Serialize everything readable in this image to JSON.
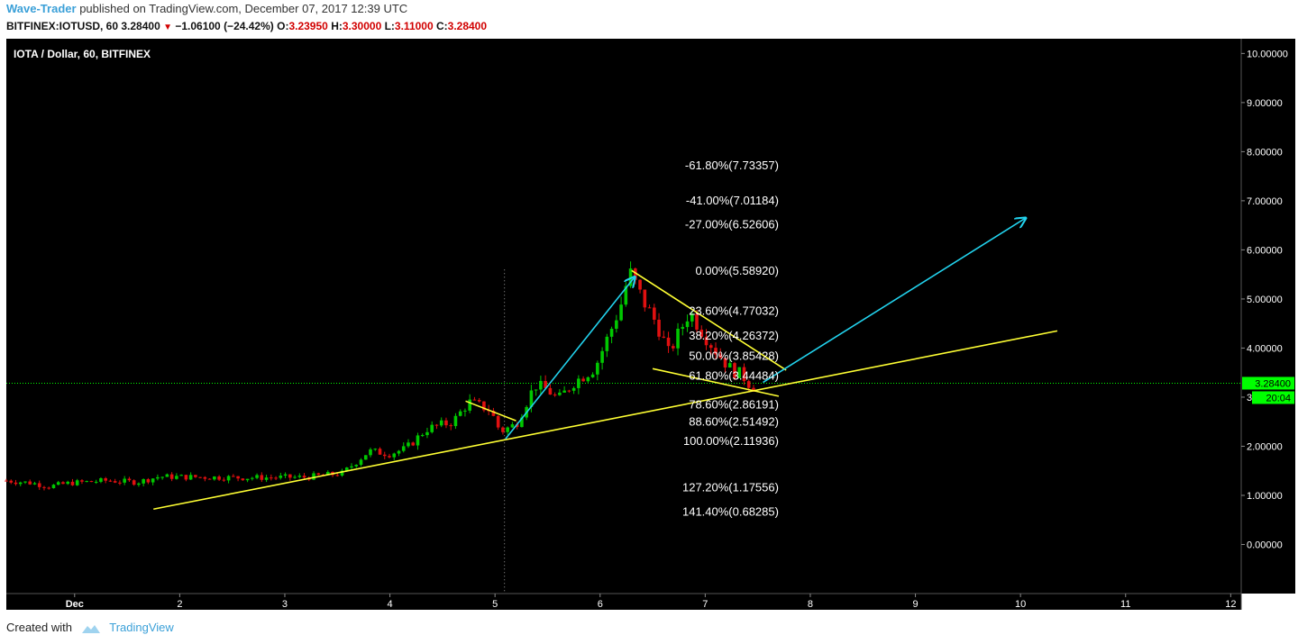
{
  "header": {
    "author": "Wave-Trader",
    "published_text": "published on TradingView.com, December 07, 2017 12:39 UTC",
    "symbol_line": "BITFINEX:IOTUSD, 60",
    "last": "3.28400",
    "change": "−1.06100 (−24.42%)",
    "o_label": "O:",
    "o_value": "3.23950",
    "h_label": "H:",
    "h_value": "3.30000",
    "l_label": "L:",
    "l_value": "3.11000",
    "c_label": "C:",
    "c_value": "3.28400"
  },
  "footer": {
    "created_with": "Created with",
    "brand": "TradingView"
  },
  "colors": {
    "background": "#000000",
    "up": "#00c800",
    "down": "#e01010",
    "trendline": "#ffff33",
    "projection": "#22d3ee",
    "price_tag": "#00ff00"
  },
  "chart_data": {
    "type": "candlestick",
    "title": "IOTA / Dollar, 60, BITFINEX",
    "x_axis": {
      "range": [
        0.35,
        12.1
      ],
      "ticks": [
        {
          "x": 1,
          "label": "Dec"
        },
        {
          "x": 2,
          "label": "2"
        },
        {
          "x": 3,
          "label": "3"
        },
        {
          "x": 4,
          "label": "4"
        },
        {
          "x": 5,
          "label": "5"
        },
        {
          "x": 6,
          "label": "6"
        },
        {
          "x": 7,
          "label": "7"
        },
        {
          "x": 8,
          "label": "8"
        },
        {
          "x": 9,
          "label": "9"
        },
        {
          "x": 10,
          "label": "10"
        },
        {
          "x": 11,
          "label": "11"
        },
        {
          "x": 12,
          "label": "12"
        }
      ]
    },
    "y_axis": {
      "range": [
        -1.0,
        10.3
      ],
      "ticks": [
        "0.00000",
        "1.00000",
        "2.00000",
        "3.00000",
        "4.00000",
        "5.00000",
        "6.00000",
        "7.00000",
        "8.00000",
        "9.00000",
        "10.00000"
      ]
    },
    "last_price": {
      "value": 3.284,
      "label": "3.28400",
      "countdown": "20:04"
    },
    "fib_levels": [
      {
        "label": "-61.80%(7.73357)",
        "value": 7.73357
      },
      {
        "label": "-41.00%(7.01184)",
        "value": 7.01184
      },
      {
        "label": "-27.00%(6.52606)",
        "value": 6.52606
      },
      {
        "label": "0.00%(5.58920)",
        "value": 5.5892
      },
      {
        "label": "23.60%(4.77032)",
        "value": 4.77032
      },
      {
        "label": "38.20%(4.26372)",
        "value": 4.26372
      },
      {
        "label": "50.00%(3.85428)",
        "value": 3.85428
      },
      {
        "label": "61.80%(3.44484)",
        "value": 3.44484
      },
      {
        "label": "78.60%(2.86191)",
        "value": 2.86191
      },
      {
        "label": "88.60%(2.51492)",
        "value": 2.51492
      },
      {
        "label": "100.00%(2.11936)",
        "value": 2.11936
      },
      {
        "label": "127.20%(1.17556)",
        "value": 1.17556
      },
      {
        "label": "141.40%(0.68285)",
        "value": 0.68285
      }
    ],
    "fib_label_x": 7.7,
    "vertical_marker": {
      "x": 5.09,
      "y_top": 5.6
    },
    "trendlines": [
      {
        "kind": "support",
        "color": "yellow",
        "points": [
          [
            1.75,
            0.72
          ],
          [
            10.35,
            4.35
          ]
        ]
      },
      {
        "kind": "flag-top",
        "color": "yellow",
        "points": [
          [
            4.72,
            2.92
          ],
          [
            5.2,
            2.52
          ]
        ]
      },
      {
        "kind": "wedge-top",
        "color": "yellow",
        "points": [
          [
            6.3,
            5.58
          ],
          [
            7.77,
            3.55
          ]
        ]
      },
      {
        "kind": "wedge-bottom",
        "color": "yellow",
        "points": [
          [
            6.5,
            3.58
          ],
          [
            7.7,
            3.02
          ]
        ]
      },
      {
        "kind": "impulse",
        "color": "cyan",
        "arrow": true,
        "points": [
          [
            5.1,
            2.15
          ],
          [
            6.33,
            5.45
          ]
        ]
      },
      {
        "kind": "projection",
        "color": "cyan",
        "arrow": true,
        "points": [
          [
            7.55,
            3.3
          ],
          [
            10.05,
            6.65
          ]
        ]
      }
    ],
    "price_path": [
      [
        0.35,
        1.3
      ],
      [
        0.6,
        1.25
      ],
      [
        0.75,
        1.18
      ],
      [
        0.95,
        1.25
      ],
      [
        1.3,
        1.3
      ],
      [
        1.6,
        1.27
      ],
      [
        1.8,
        1.38
      ],
      [
        2.3,
        1.37
      ],
      [
        2.6,
        1.36
      ],
      [
        3.2,
        1.37
      ],
      [
        3.55,
        1.45
      ],
      [
        3.8,
        1.9
      ],
      [
        4.0,
        1.85
      ],
      [
        4.15,
        1.95
      ],
      [
        4.35,
        2.35
      ],
      [
        4.6,
        2.5
      ],
      [
        4.75,
        2.9
      ],
      [
        4.95,
        2.75
      ],
      [
        5.05,
        2.3
      ],
      [
        5.2,
        2.45
      ],
      [
        5.38,
        3.25
      ],
      [
        5.5,
        3.15
      ],
      [
        5.6,
        2.95
      ],
      [
        5.75,
        3.3
      ],
      [
        5.95,
        3.6
      ],
      [
        6.1,
        4.35
      ],
      [
        6.2,
        4.9
      ],
      [
        6.28,
        5.55
      ],
      [
        6.4,
        5.0
      ],
      [
        6.55,
        4.45
      ],
      [
        6.65,
        3.9
      ],
      [
        6.75,
        4.3
      ],
      [
        6.85,
        4.75
      ],
      [
        7.0,
        4.25
      ],
      [
        7.1,
        3.95
      ],
      [
        7.25,
        3.55
      ],
      [
        7.35,
        3.45
      ],
      [
        7.45,
        3.2
      ],
      [
        7.5,
        3.284
      ]
    ]
  }
}
